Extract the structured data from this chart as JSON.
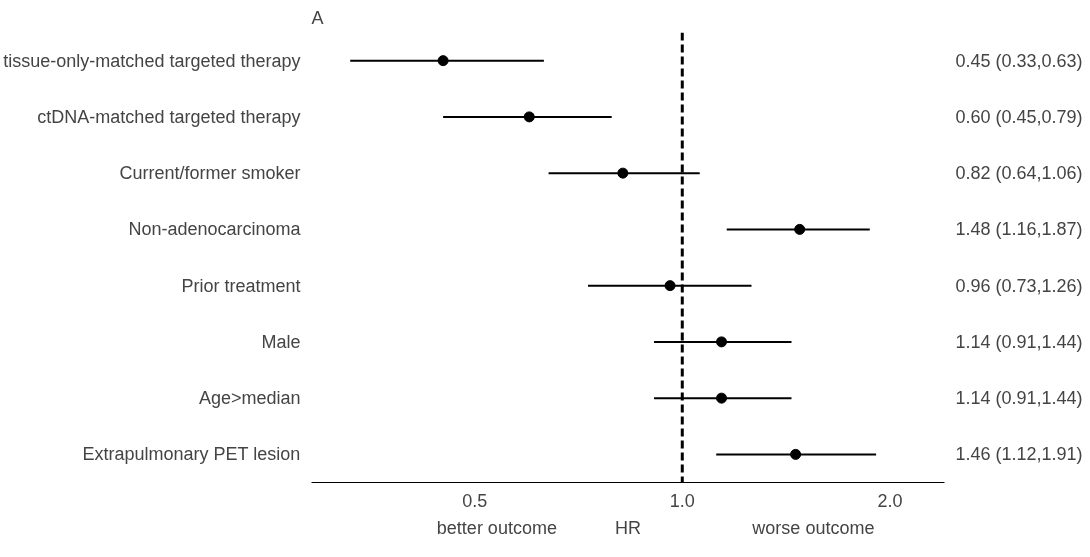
{
  "chart_data": {
    "type": "scatter",
    "title": "A",
    "orientation": "horizontal",
    "categories": [
      "tissue-only-matched targeted therapy",
      "ctDNA-matched targeted therapy",
      "Current/former smoker",
      "Non-adenocarcinoma",
      "Prior treatment",
      "Male",
      "Age>median",
      "Extrapulmonary PET lesion"
    ],
    "values": [
      0.45,
      0.6,
      0.82,
      1.48,
      0.96,
      1.14,
      1.14,
      1.46
    ],
    "errors": [
      [
        0.33,
        0.63
      ],
      [
        0.45,
        0.79
      ],
      [
        0.64,
        1.06
      ],
      [
        1.16,
        1.87
      ],
      [
        0.73,
        1.26
      ],
      [
        0.91,
        1.44
      ],
      [
        0.91,
        1.44
      ],
      [
        1.12,
        1.91
      ]
    ],
    "value_labels": [
      "0.45 (0.33,0.63)",
      "0.60 (0.45,0.79)",
      "0.82 (0.64,1.06)",
      "1.48 (1.16,1.87)",
      "0.96 (0.73,1.26)",
      "1.14 (0.91,1.44)",
      "1.14 (0.91,1.44)",
      "1.46 (1.12,1.91)"
    ],
    "color": "#000000",
    "marker": "circle",
    "log": "x",
    "xlim": [
      0.29,
      2.4
    ],
    "xticks": [
      {
        "value": 0.5,
        "label": "0.5"
      },
      {
        "value": 1,
        "label": "1.0"
      },
      {
        "value": 2,
        "label": "2.0"
      }
    ],
    "xlabel": "HR",
    "annotations": [
      "better outcome",
      "worse outcome"
    ],
    "ref_lines": [
      {
        "axis": "x",
        "value": 1,
        "color": "#000000",
        "line_style": "dashed"
      }
    ],
    "grid": false
  }
}
